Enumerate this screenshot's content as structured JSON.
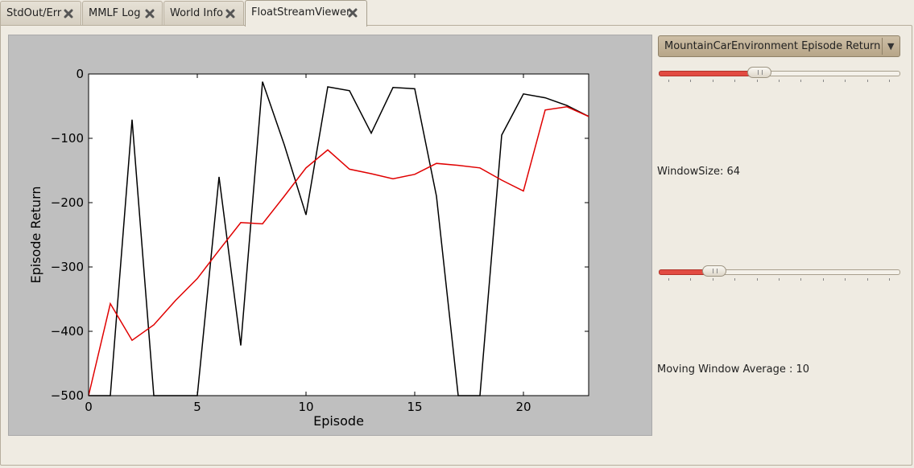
{
  "tabs": [
    {
      "label": "StdOut/Err",
      "active": false
    },
    {
      "label": "MMLF Log",
      "active": false
    },
    {
      "label": "World Info",
      "active": false
    },
    {
      "label": "FloatStreamViewer",
      "active": true
    }
  ],
  "stream_select": {
    "selected": "MountainCarEnvironment Episode Return"
  },
  "window_size": {
    "label": "WindowSize: 64",
    "fraction": 0.41
  },
  "moving_average": {
    "label": "Moving Window Average : 10",
    "fraction": 0.2
  },
  "colors": {
    "raw_series": "#000000",
    "average_series": "#e00000",
    "accent": "#e24b42"
  },
  "chart_data": {
    "type": "line",
    "xlabel": "Episode",
    "ylabel": "Episode Return",
    "xlim": [
      0,
      23
    ],
    "ylim": [
      -500,
      0
    ],
    "xticks": [
      0,
      5,
      10,
      15,
      20
    ],
    "yticks": [
      0,
      -100,
      -200,
      -300,
      -400,
      -500
    ],
    "ytick_labels": [
      "0",
      "−100",
      "−200",
      "−300",
      "−400",
      "−500"
    ],
    "grid": false,
    "x": [
      0,
      1,
      2,
      3,
      4,
      5,
      6,
      7,
      8,
      9,
      10,
      11,
      12,
      13,
      14,
      15,
      16,
      17,
      18,
      19,
      20,
      21,
      22,
      23
    ],
    "series": [
      {
        "color": "#000000",
        "values": [
          -500,
          -500,
          -71,
          -500,
          -500,
          -500,
          -160,
          -422,
          -12,
          -110,
          -219,
          -20,
          -26,
          -92,
          -21,
          -23,
          -190,
          -500,
          -500,
          -95,
          -31,
          -37,
          -49,
          -66
        ]
      },
      {
        "color": "#e00000",
        "values": [
          -500,
          -357,
          -414,
          -390,
          -352,
          -318,
          -274,
          -231,
          -233,
          -190,
          -146,
          -118,
          -148,
          -155,
          -163,
          -156,
          -139,
          -142,
          -146,
          -165,
          -182,
          -56,
          -51,
          -66
        ]
      }
    ]
  }
}
